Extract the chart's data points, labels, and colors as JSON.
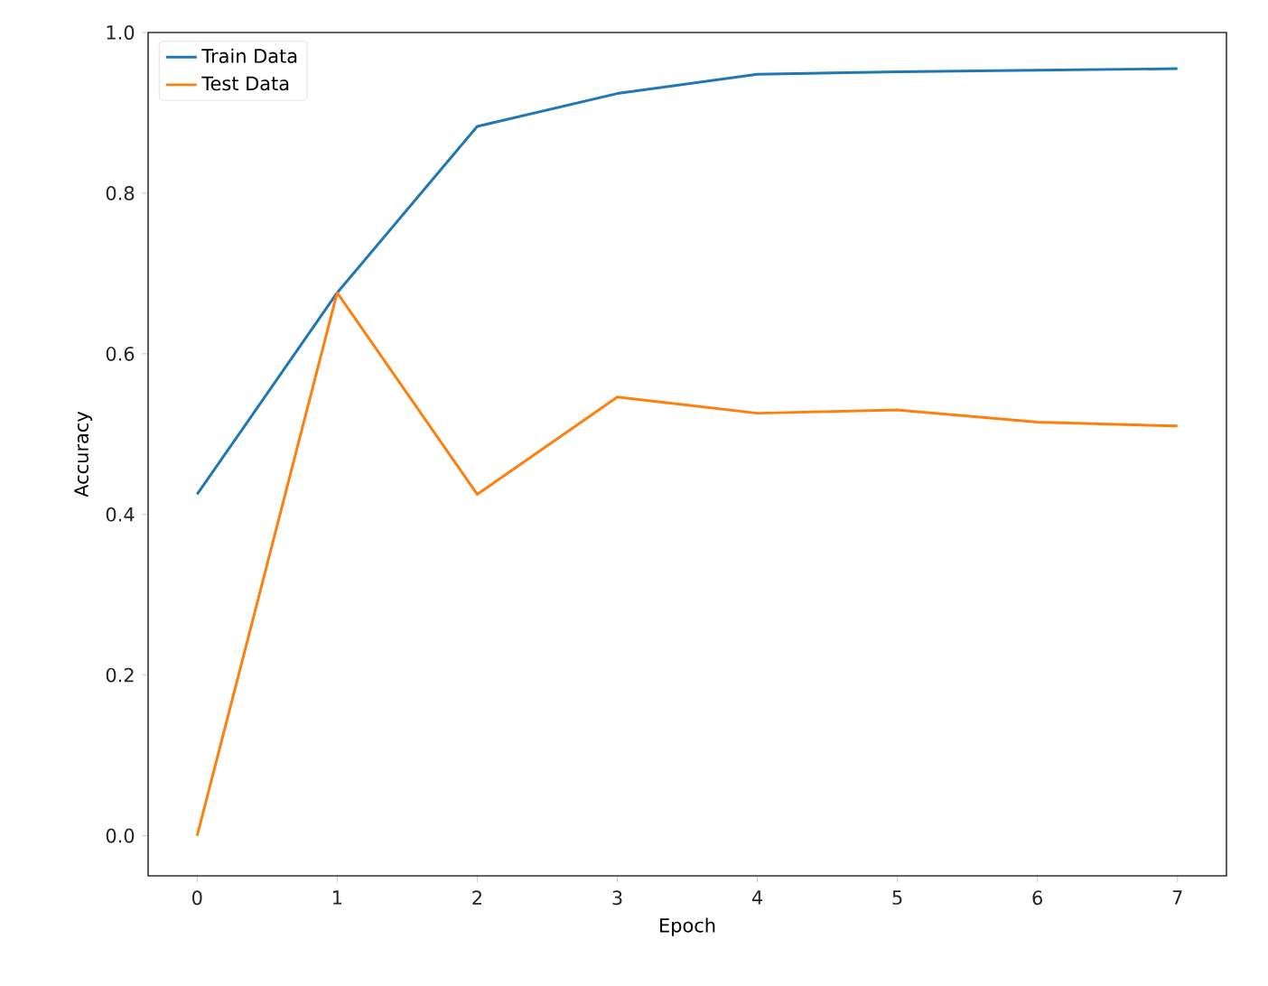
{
  "chart_data": {
    "type": "line",
    "xlabel": "Epoch",
    "ylabel": "Accuracy",
    "x": [
      0,
      1,
      2,
      3,
      4,
      5,
      6,
      7
    ],
    "series": [
      {
        "name": "Train Data",
        "color": "#1f77b4",
        "values": [
          0.425,
          0.676,
          0.883,
          0.924,
          0.948,
          0.951,
          0.953,
          0.955
        ]
      },
      {
        "name": "Test Data",
        "color": "#ff7f0e",
        "values": [
          0.0,
          0.676,
          0.425,
          0.546,
          0.526,
          0.53,
          0.515,
          0.51
        ]
      }
    ],
    "xlim": [
      -0.35,
      7.35
    ],
    "ylim": [
      -0.05,
      1.0
    ],
    "xticks": [
      0,
      1,
      2,
      3,
      4,
      5,
      6,
      7
    ],
    "yticks": [
      {
        "value": 0,
        "label": "0.0"
      },
      {
        "value": 0.2,
        "label": "0.2"
      },
      {
        "value": 0.4,
        "label": "0.4"
      },
      {
        "value": 0.6,
        "label": "0.6"
      },
      {
        "value": 0.8,
        "label": "0.8"
      },
      {
        "value": 1.0,
        "label": "1.0"
      }
    ],
    "legend": "top left",
    "grid": false,
    "marker": "none",
    "line_style": "solid"
  }
}
